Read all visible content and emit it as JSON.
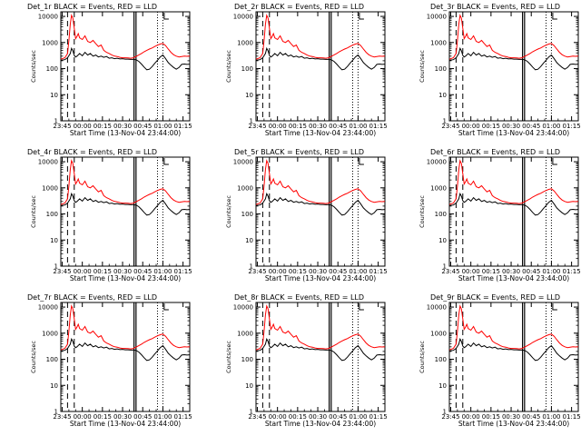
{
  "colors": {
    "events": "#000000",
    "lld": "#ff0000",
    "background": "#ffffff",
    "axes": "#000000"
  },
  "panels": [
    {
      "title": "Det_1r BLACK = Events, RED = LLD"
    },
    {
      "title": "Det_2r BLACK = Events, RED = LLD"
    },
    {
      "title": "Det_3r BLACK = Events, RED = LLD"
    },
    {
      "title": "Det_4r BLACK = Events, RED = LLD"
    },
    {
      "title": "Det_5r BLACK = Events, RED = LLD"
    },
    {
      "title": "Det_6r BLACK = Events, RED = LLD"
    },
    {
      "title": "Det_7r BLACK = Events, RED = LLD"
    },
    {
      "title": "Det_8r BLACK = Events, RED = LLD"
    },
    {
      "title": "Det_9r BLACK = Events, RED = LLD"
    }
  ],
  "chart_data": {
    "type": "line",
    "layout": "3x3 grid of identical log-scale time series",
    "xlabel": "Start Time (13-Nov-04 23:44:00)",
    "ylabel": "Counts/sec",
    "x_ticks": [
      "23:45",
      "00:00",
      "00:15",
      "00:30",
      "00:45",
      "01:00",
      "01:15"
    ],
    "x_tick_minutes": [
      1,
      16,
      31,
      46,
      61,
      76,
      91
    ],
    "xlim_minutes": [
      0,
      96
    ],
    "y_scale": "log",
    "y_ticks": [
      "1",
      "10",
      "100",
      "1000",
      "10000"
    ],
    "ylim": [
      1,
      15000
    ],
    "markers": {
      "dashed_vertical_minutes": [
        5,
        10
      ],
      "solid_vertical_minutes": [
        54.5,
        56
      ],
      "dotted_vertical_minutes": [
        72,
        76
      ],
      "bracket_minute": 77
    },
    "series": [
      {
        "name": "Events",
        "color": "#000000",
        "x": [
          0,
          3,
          5,
          7,
          8,
          9,
          10,
          11,
          12,
          14,
          16,
          18,
          20,
          22,
          24,
          26,
          28,
          30,
          32,
          34,
          36,
          38,
          40,
          42,
          44,
          46,
          48,
          50,
          52,
          54,
          56,
          58,
          60,
          62,
          64,
          66,
          68,
          70,
          72,
          74,
          76,
          78,
          80,
          82,
          84,
          86,
          88,
          90,
          92,
          94,
          96
        ],
        "y": [
          210,
          220,
          260,
          380,
          600,
          480,
          320,
          280,
          300,
          380,
          310,
          420,
          330,
          380,
          300,
          330,
          280,
          300,
          270,
          290,
          250,
          260,
          240,
          250,
          235,
          240,
          230,
          230,
          225,
          225,
          220,
          190,
          150,
          115,
          90,
          95,
          120,
          160,
          210,
          280,
          330,
          240,
          170,
          135,
          110,
          95,
          110,
          145,
          150,
          145,
          148
        ]
      },
      {
        "name": "LLD",
        "color": "#ff0000",
        "x": [
          0,
          3,
          5,
          6,
          7,
          8,
          9,
          10,
          11,
          12,
          13,
          14,
          16,
          18,
          20,
          22,
          24,
          26,
          28,
          30,
          32,
          34,
          36,
          38,
          40,
          42,
          44,
          46,
          48,
          50,
          52,
          54,
          56,
          58,
          60,
          62,
          64,
          66,
          68,
          70,
          72,
          74,
          76,
          78,
          80,
          82,
          84,
          86,
          88,
          90,
          92,
          94,
          96
        ],
        "y": [
          230,
          260,
          380,
          1200,
          5000,
          11000,
          8500,
          3500,
          1400,
          1700,
          2200,
          1500,
          1300,
          1800,
          1100,
          1000,
          1200,
          900,
          700,
          800,
          500,
          420,
          380,
          330,
          300,
          290,
          270,
          260,
          260,
          255,
          250,
          260,
          290,
          330,
          380,
          440,
          500,
          560,
          620,
          700,
          790,
          870,
          920,
          760,
          560,
          420,
          340,
          300,
          280,
          290,
          300,
          295,
          300
        ]
      }
    ]
  }
}
